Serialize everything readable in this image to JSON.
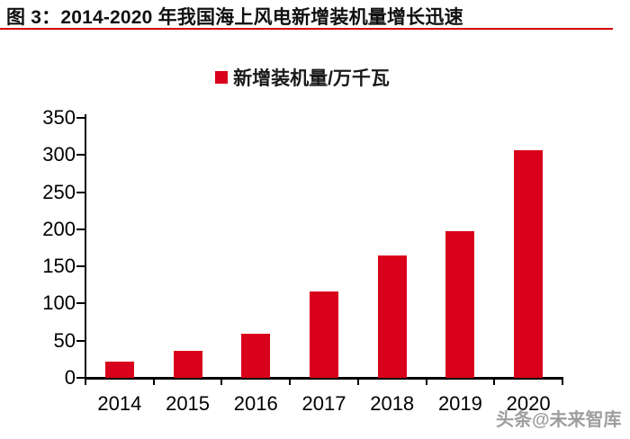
{
  "header": {
    "title": "图 3：2014-2020 年我国海上风电新增装机量增长迅速",
    "underline_color": "#d40000"
  },
  "legend": {
    "label": "新增装机量/万千瓦"
  },
  "chart_data": {
    "type": "bar",
    "title": "图 3：2014-2020 年我国海上风电新增装机量增长迅速",
    "categories": [
      "2014",
      "2015",
      "2016",
      "2017",
      "2018",
      "2019",
      "2020"
    ],
    "values": [
      22,
      36,
      59,
      116,
      165,
      198,
      306
    ],
    "series_name": "新增装机量/万千瓦",
    "xlabel": "",
    "ylabel": "",
    "ylim": [
      0,
      350
    ],
    "yticks": [
      0,
      50,
      100,
      150,
      200,
      250,
      300,
      350
    ],
    "grid": false,
    "legend_position": "top-center",
    "bar_color": "#d9001b",
    "axis_color": "#000000"
  },
  "watermark": {
    "text": "头条@未来智库",
    "color": "#8e8e8e"
  }
}
